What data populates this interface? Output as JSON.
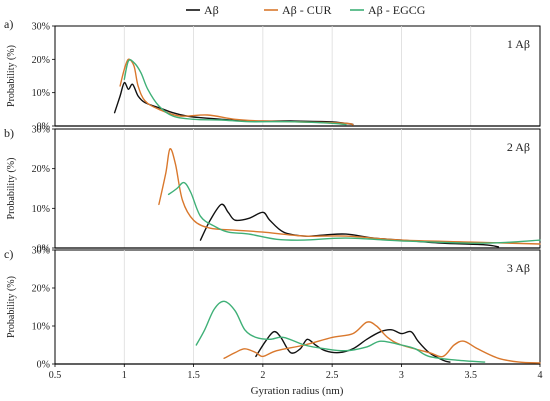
{
  "legend": {
    "placement": "top-center",
    "entries": [
      {
        "label": "Aβ",
        "color": "#111111"
      },
      {
        "label": "Aβ - CUR",
        "color": "#d9782d"
      },
      {
        "label": "Aβ - EGCG",
        "color": "#3fb077"
      }
    ]
  },
  "xlabel": "Gyration radius (nm)",
  "xticks": [
    "0.5",
    "1",
    "1.5",
    "2",
    "2.5",
    "3",
    "3.5",
    "4"
  ],
  "xlim": [
    0.5,
    4
  ],
  "chart_data": [
    {
      "type": "line",
      "panel": "a)",
      "annotation": "1 Aβ",
      "ylabel": "Probability (%)",
      "ylim": [
        0,
        30
      ],
      "yticks": [
        "0%",
        "10%",
        "20%",
        "30%"
      ],
      "grid": "vertical",
      "series": [
        {
          "name": "Aβ",
          "color": "#111111",
          "points": [
            [
              0.93,
              4
            ],
            [
              0.97,
              9
            ],
            [
              1.0,
              13
            ],
            [
              1.03,
              11
            ],
            [
              1.06,
              12.5
            ],
            [
              1.1,
              9
            ],
            [
              1.15,
              7
            ],
            [
              1.25,
              5.5
            ],
            [
              1.35,
              4
            ],
            [
              1.45,
              3
            ],
            [
              1.55,
              2.5
            ],
            [
              1.7,
              2
            ],
            [
              1.9,
              1.5
            ],
            [
              2.2,
              1.5
            ],
            [
              2.5,
              1.2
            ],
            [
              2.65,
              0.5
            ]
          ]
        },
        {
          "name": "Aβ - CUR",
          "color": "#d9782d",
          "points": [
            [
              0.97,
              12
            ],
            [
              1.0,
              17
            ],
            [
              1.03,
              20
            ],
            [
              1.07,
              18
            ],
            [
              1.1,
              12
            ],
            [
              1.15,
              7.5
            ],
            [
              1.25,
              5
            ],
            [
              1.4,
              3
            ],
            [
              1.6,
              3.3
            ],
            [
              1.8,
              2
            ],
            [
              2.0,
              1.5
            ],
            [
              2.3,
              1.2
            ],
            [
              2.6,
              0.8
            ],
            [
              2.65,
              0.3
            ]
          ]
        },
        {
          "name": "Aβ - EGCG",
          "color": "#3fb077",
          "points": [
            [
              1.0,
              14
            ],
            [
              1.03,
              19.5
            ],
            [
              1.07,
              19
            ],
            [
              1.12,
              16
            ],
            [
              1.17,
              11
            ],
            [
              1.25,
              6
            ],
            [
              1.35,
              3
            ],
            [
              1.5,
              2
            ],
            [
              1.7,
              1.8
            ],
            [
              1.9,
              1.3
            ],
            [
              2.2,
              1.3
            ],
            [
              2.5,
              0.8
            ],
            [
              2.6,
              0.4
            ]
          ]
        }
      ]
    },
    {
      "type": "line",
      "panel": "b)",
      "annotation": "2 Aβ",
      "ylabel": "Probability (%)",
      "ylim": [
        0,
        30
      ],
      "yticks": [
        "0%",
        "10%",
        "20%",
        "30%"
      ],
      "grid": "vertical",
      "series": [
        {
          "name": "Aβ",
          "color": "#111111",
          "points": [
            [
              1.55,
              2
            ],
            [
              1.62,
              7
            ],
            [
              1.7,
              11
            ],
            [
              1.75,
              9
            ],
            [
              1.8,
              7
            ],
            [
              1.9,
              7.5
            ],
            [
              2.0,
              9
            ],
            [
              2.05,
              7
            ],
            [
              2.15,
              4
            ],
            [
              2.3,
              3
            ],
            [
              2.45,
              3.3
            ],
            [
              2.6,
              3.5
            ],
            [
              2.8,
              2.5
            ],
            [
              3.0,
              2
            ],
            [
              3.3,
              1.2
            ],
            [
              3.6,
              0.8
            ],
            [
              3.7,
              0.3
            ]
          ]
        },
        {
          "name": "Aβ - CUR",
          "color": "#d9782d",
          "points": [
            [
              1.25,
              11
            ],
            [
              1.3,
              19
            ],
            [
              1.33,
              25
            ],
            [
              1.37,
              21
            ],
            [
              1.42,
              12
            ],
            [
              1.5,
              7
            ],
            [
              1.62,
              5
            ],
            [
              1.8,
              4.5
            ],
            [
              2.0,
              4
            ],
            [
              2.3,
              3
            ],
            [
              2.6,
              3
            ],
            [
              3.0,
              2
            ],
            [
              3.5,
              1.5
            ],
            [
              4.0,
              1
            ]
          ]
        },
        {
          "name": "Aβ - EGCG",
          "color": "#3fb077",
          "points": [
            [
              1.32,
              13.5
            ],
            [
              1.38,
              15
            ],
            [
              1.43,
              16.5
            ],
            [
              1.48,
              14
            ],
            [
              1.55,
              8
            ],
            [
              1.65,
              5.5
            ],
            [
              1.75,
              4
            ],
            [
              1.9,
              3.5
            ],
            [
              2.1,
              2.2
            ],
            [
              2.3,
              2
            ],
            [
              2.6,
              2.5
            ],
            [
              3.0,
              1.8
            ],
            [
              3.5,
              1.2
            ],
            [
              3.8,
              1.5
            ],
            [
              4.0,
              2
            ]
          ]
        }
      ]
    },
    {
      "type": "line",
      "panel": "c)",
      "annotation": "3 Aβ",
      "ylabel": "Probability (%)",
      "ylim": [
        0,
        30
      ],
      "yticks": [
        "0%",
        "10%",
        "20%",
        "30%"
      ],
      "grid": "vertical",
      "series": [
        {
          "name": "Aβ",
          "color": "#111111",
          "points": [
            [
              1.95,
              2
            ],
            [
              2.02,
              6
            ],
            [
              2.08,
              8.5
            ],
            [
              2.13,
              7
            ],
            [
              2.2,
              3
            ],
            [
              2.27,
              4
            ],
            [
              2.32,
              6.5
            ],
            [
              2.38,
              5
            ],
            [
              2.45,
              3.5
            ],
            [
              2.55,
              3
            ],
            [
              2.65,
              4
            ],
            [
              2.75,
              6.5
            ],
            [
              2.85,
              8.5
            ],
            [
              2.93,
              9
            ],
            [
              3.0,
              8
            ],
            [
              3.07,
              8.5
            ],
            [
              3.12,
              6
            ],
            [
              3.2,
              3
            ],
            [
              3.3,
              1
            ],
            [
              3.35,
              0.5
            ]
          ]
        },
        {
          "name": "Aβ - CUR",
          "color": "#d9782d",
          "points": [
            [
              1.72,
              1.5
            ],
            [
              1.8,
              3
            ],
            [
              1.87,
              4
            ],
            [
              1.95,
              3
            ],
            [
              2.0,
              2
            ],
            [
              2.1,
              3.5
            ],
            [
              2.3,
              5
            ],
            [
              2.5,
              7
            ],
            [
              2.65,
              8
            ],
            [
              2.75,
              11
            ],
            [
              2.82,
              10
            ],
            [
              2.9,
              7
            ],
            [
              3.0,
              5
            ],
            [
              3.2,
              3
            ],
            [
              3.3,
              2
            ],
            [
              3.38,
              5
            ],
            [
              3.45,
              6
            ],
            [
              3.55,
              4
            ],
            [
              3.7,
              1.5
            ],
            [
              3.85,
              0.5
            ],
            [
              4.0,
              0.3
            ]
          ]
        },
        {
          "name": "Aβ - EGCG",
          "color": "#3fb077",
          "points": [
            [
              1.52,
              5
            ],
            [
              1.58,
              9
            ],
            [
              1.65,
              14.5
            ],
            [
              1.72,
              16.5
            ],
            [
              1.8,
              14
            ],
            [
              1.87,
              9
            ],
            [
              1.95,
              7
            ],
            [
              2.05,
              6.5
            ],
            [
              2.15,
              7
            ],
            [
              2.3,
              5
            ],
            [
              2.45,
              4
            ],
            [
              2.6,
              3.5
            ],
            [
              2.75,
              4.5
            ],
            [
              2.85,
              6
            ],
            [
              3.0,
              5
            ],
            [
              3.1,
              4
            ],
            [
              3.2,
              2
            ],
            [
              3.4,
              1
            ],
            [
              3.6,
              0.5
            ]
          ]
        }
      ]
    }
  ]
}
